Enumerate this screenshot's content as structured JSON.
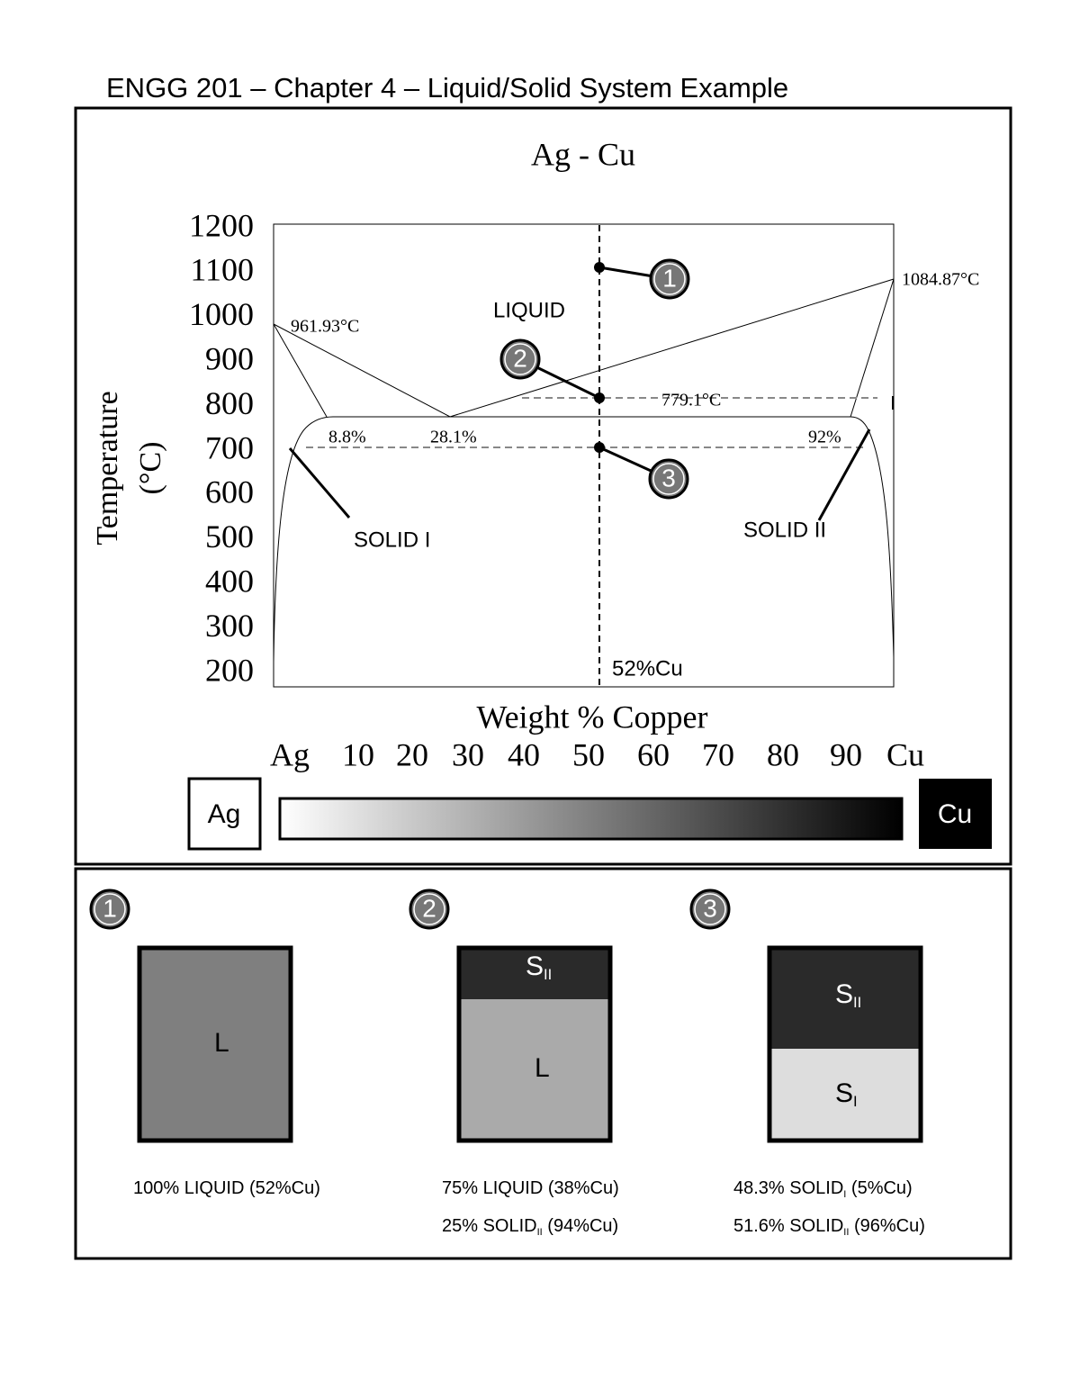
{
  "header": {
    "title": "ENGG 201 – Chapter 4 – Liquid/Solid System Example"
  },
  "diagram": {
    "title": "Ag - Cu",
    "y_axis_label": [
      "Temperature",
      "(°C)"
    ],
    "y_ticks": [
      "1200",
      "1100",
      "1000",
      "900",
      "800",
      "700",
      "600",
      "500",
      "400",
      "300",
      "200"
    ],
    "x_axis_label": "Weight % Copper",
    "x_ticks": [
      "Ag",
      "10",
      "20",
      "30",
      "40",
      "50",
      "60",
      "70",
      "80",
      "90",
      "Cu"
    ],
    "annotations": {
      "ag_melt": "961.93°C",
      "cu_melt": "1084.87°C",
      "liquid": "LIQUID",
      "eutectic_temp": "779.1°C",
      "solid1_limit": "8.8%",
      "eutectic_comp": "28.1%",
      "solid2_limit": "92%",
      "solid1": "SOLID I",
      "solid2": "SOLID II",
      "composition": "52%Cu"
    },
    "callouts": [
      "1",
      "2",
      "3"
    ],
    "scale": {
      "left": "Ag",
      "right": "Cu"
    }
  },
  "states": [
    {
      "number": "1",
      "phases": [
        {
          "label": "L"
        }
      ],
      "captions": [
        {
          "text": "100% LIQUID (52%Cu)"
        }
      ]
    },
    {
      "number": "2",
      "phases": [
        {
          "label": "S",
          "sub": "II"
        },
        {
          "label": "L"
        }
      ],
      "captions": [
        {
          "text": "75% LIQUID (38%Cu)"
        },
        {
          "text": "25% SOLID",
          "sub": "II",
          "tail": " (94%Cu)"
        }
      ]
    },
    {
      "number": "3",
      "phases": [
        {
          "label": "S",
          "sub": "II"
        },
        {
          "label": "S",
          "sub": "I"
        }
      ],
      "captions": [
        {
          "text": "48.3% SOLID",
          "sub": "I",
          "tail": " (5%Cu)"
        },
        {
          "text": "51.6% SOLID",
          "sub": "II",
          "tail": " (96%Cu)"
        }
      ]
    }
  ]
}
